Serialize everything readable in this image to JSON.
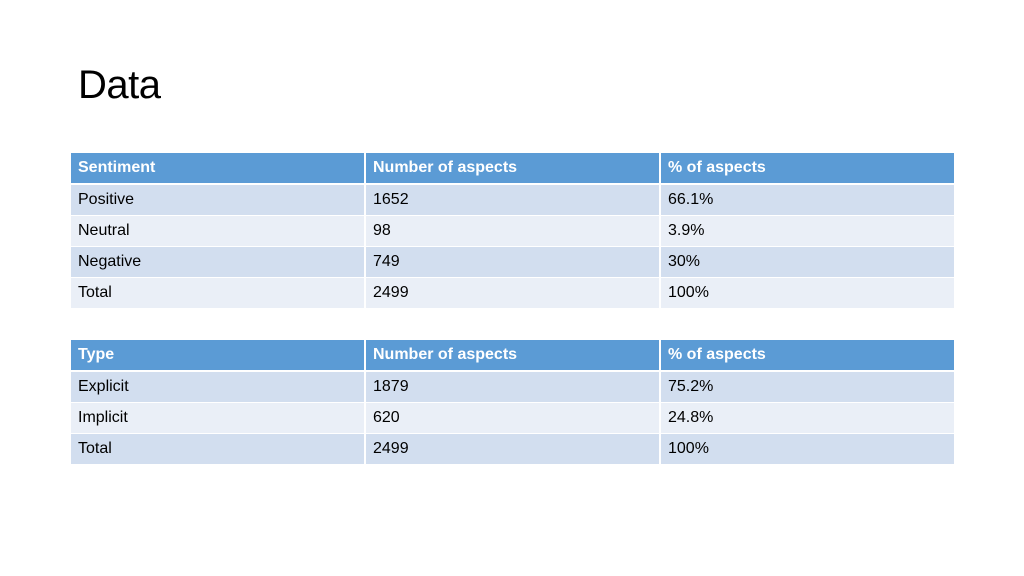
{
  "title": "Data",
  "sentiment_table": {
    "headers": [
      "Sentiment",
      "Number of aspects",
      "% of aspects"
    ],
    "rows": [
      [
        "Positive",
        "1652",
        "66.1%"
      ],
      [
        "Neutral",
        "98",
        "3.9%"
      ],
      [
        "Negative",
        "749",
        "30%"
      ],
      [
        "Total",
        "2499",
        "100%"
      ]
    ]
  },
  "type_table": {
    "headers": [
      "Type",
      "Number of aspects",
      "% of aspects"
    ],
    "rows": [
      [
        "Explicit",
        "1879",
        "75.2%"
      ],
      [
        "Implicit",
        "620",
        "24.8%"
      ],
      [
        "Total",
        "2499",
        "100%"
      ]
    ]
  },
  "colors": {
    "header_bg": "#5b9bd5",
    "row_band_dark": "#d2deef",
    "row_band_light": "#eaeff7"
  }
}
